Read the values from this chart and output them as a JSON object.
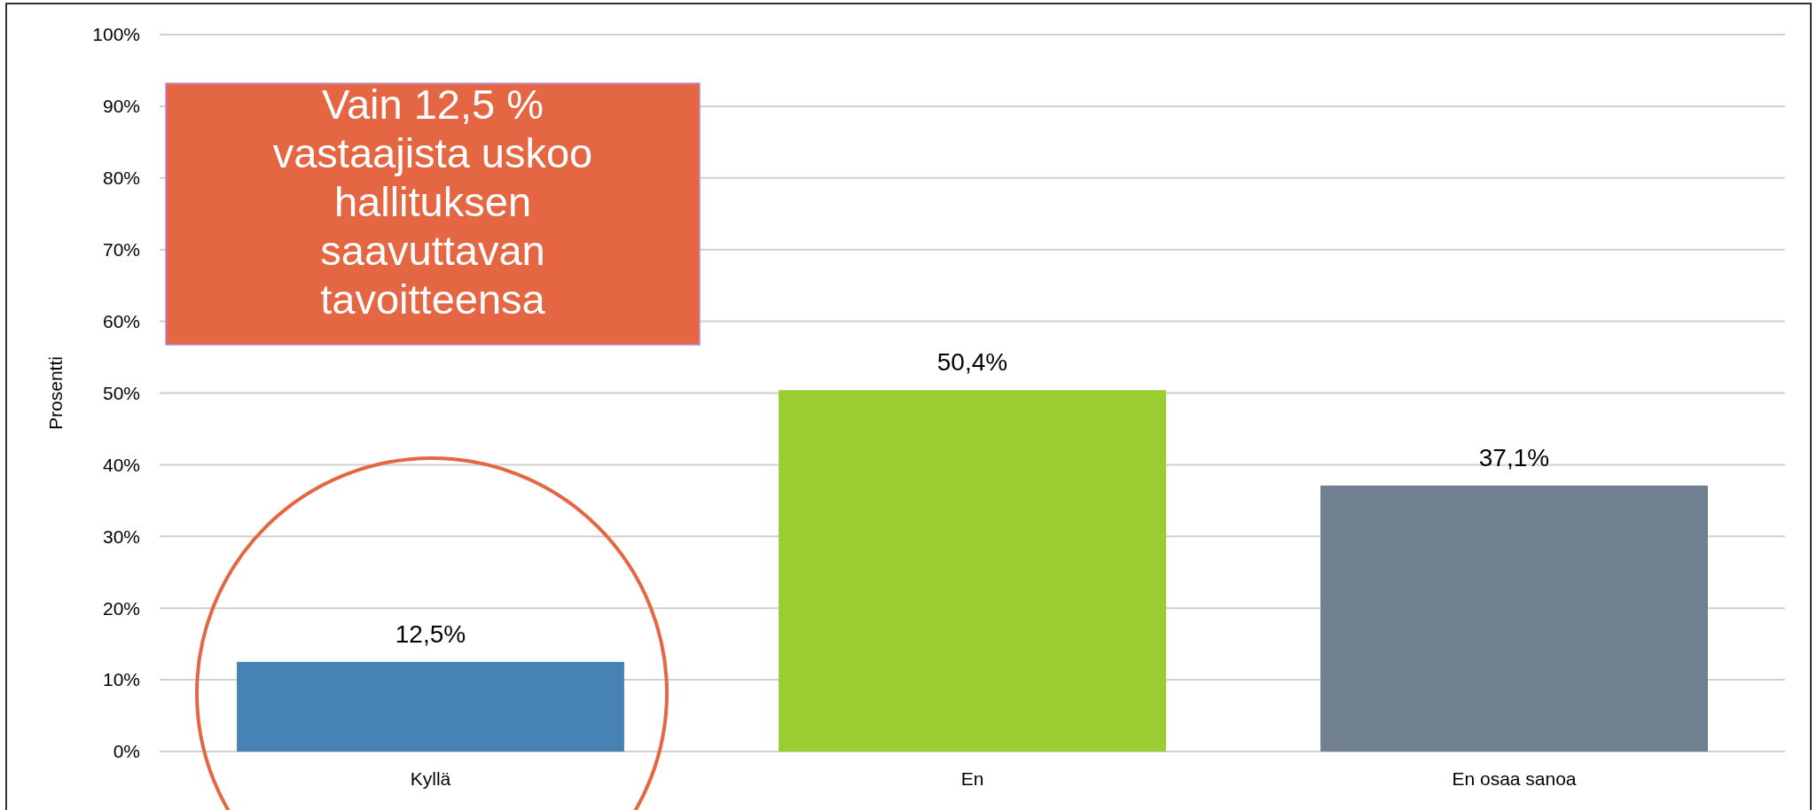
{
  "chart_data": {
    "type": "bar",
    "ylabel": "Prosentti",
    "categories": [
      "Kyllä",
      "En",
      "En osaa sanoa"
    ],
    "values": [
      12.5,
      50.4,
      37.1
    ],
    "colors": [
      "#4682b4",
      "#9acd32",
      "#708090"
    ],
    "value_labels": [
      "12,5%",
      "50,4%",
      "37,1%"
    ],
    "ylim": [
      0,
      100
    ],
    "yticks": [
      {
        "value": 0,
        "label": "0%"
      },
      {
        "value": 10,
        "label": "10%"
      },
      {
        "value": 20,
        "label": "20%"
      },
      {
        "value": 30,
        "label": "30%"
      },
      {
        "value": 40,
        "label": "40%"
      },
      {
        "value": 50,
        "label": "50%"
      },
      {
        "value": 60,
        "label": "60%"
      },
      {
        "value": 70,
        "label": "70%"
      },
      {
        "value": 80,
        "label": "80%"
      },
      {
        "value": 90,
        "label": "90%"
      },
      {
        "value": 100,
        "label": "100%"
      }
    ],
    "grid": true,
    "annotations": [
      "Vain 12,5 %\nvastaajista uskoo\nhallituksen\nsaavuttavan\ntavoitteensa"
    ]
  }
}
